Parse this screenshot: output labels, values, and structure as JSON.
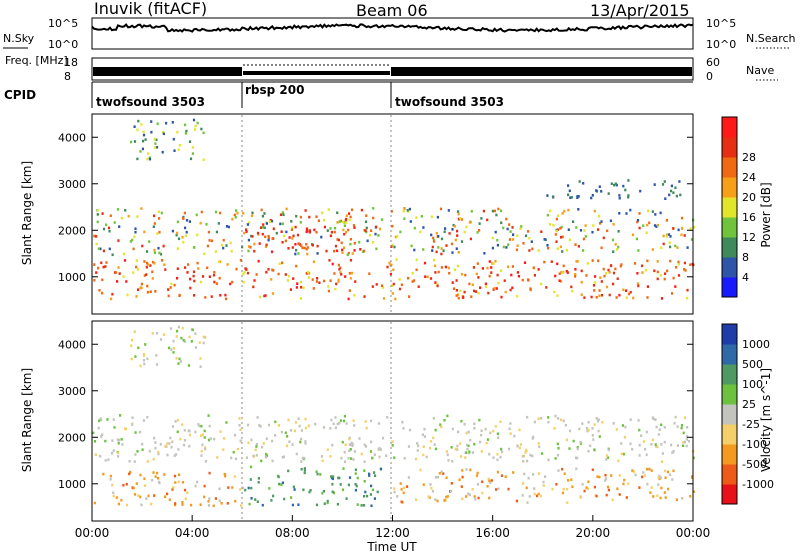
{
  "header": {
    "station": "Inuvik (fitACF)",
    "beam": "Beam 06",
    "date": "13/Apr/2015"
  },
  "colors": {
    "power": [
      "#1a1aff",
      "#2d55a8",
      "#3e8a5a",
      "#6fc43c",
      "#e2e62a",
      "#f6a019",
      "#f06a14",
      "#e62e14",
      "#ff1a1a"
    ],
    "velocity": [
      "#e8111a",
      "#ee5a18",
      "#f39a20",
      "#f5d06a",
      "#c4c4bf",
      "#6cc23e",
      "#4f9a63",
      "#2f6aa8",
      "#1e3da8"
    ]
  },
  "chart_data": [
    {
      "type": "line",
      "panel": "noise",
      "labels": {
        "left": "N.Sky",
        "right": "N.Search",
        "left_ticks": [
          "10^5",
          "10^0"
        ],
        "right_ticks": [
          "10^5",
          "10^0"
        ]
      },
      "ylim": [
        0,
        5
      ]
    },
    {
      "type": "line",
      "panel": "freq-nave",
      "labels": {
        "left": "Freq. [MHz]",
        "right": "Nave",
        "left_ticks": [
          "18",
          "8"
        ],
        "right_ticks": [
          "60",
          "0"
        ]
      },
      "ylim_left": [
        8,
        18
      ],
      "ylim_right": [
        0,
        60
      ]
    },
    {
      "type": "table",
      "panel": "cpid",
      "label": "CPID",
      "segments": [
        {
          "name": "twofsound 3503",
          "start": 0,
          "end": 6
        },
        {
          "name": "rbsp 200",
          "start": 6,
          "end": 12
        },
        {
          "name": "twofsound 3503",
          "start": 12,
          "end": 24
        }
      ]
    },
    {
      "type": "heatmap",
      "panel": "power",
      "ylabel": "Slant Range [km]",
      "yticks": [
        "1000",
        "2000",
        "3000",
        "4000"
      ],
      "ylim": [
        200,
        4500
      ],
      "colorbar_label": "Power [dB]",
      "colorbar_ticks": [
        "4",
        "8",
        "12",
        "16",
        "20",
        "24",
        "28"
      ],
      "xlim": [
        0,
        24
      ]
    },
    {
      "type": "heatmap",
      "panel": "velocity",
      "ylabel": "Slant Range [km]",
      "yticks": [
        "1000",
        "2000",
        "3000",
        "4000"
      ],
      "ylim": [
        200,
        4500
      ],
      "colorbar_label": "Velocity [m s^-1]",
      "colorbar_ticks": [
        "1000",
        "500",
        "100",
        "25",
        "-25",
        "-100",
        "-500",
        "-1000"
      ],
      "xlabel": "Time UT",
      "xticks": [
        "00:00",
        "04:00",
        "08:00",
        "12:00",
        "16:00",
        "20:00",
        "00:00"
      ],
      "xlim": [
        0,
        24
      ]
    }
  ]
}
